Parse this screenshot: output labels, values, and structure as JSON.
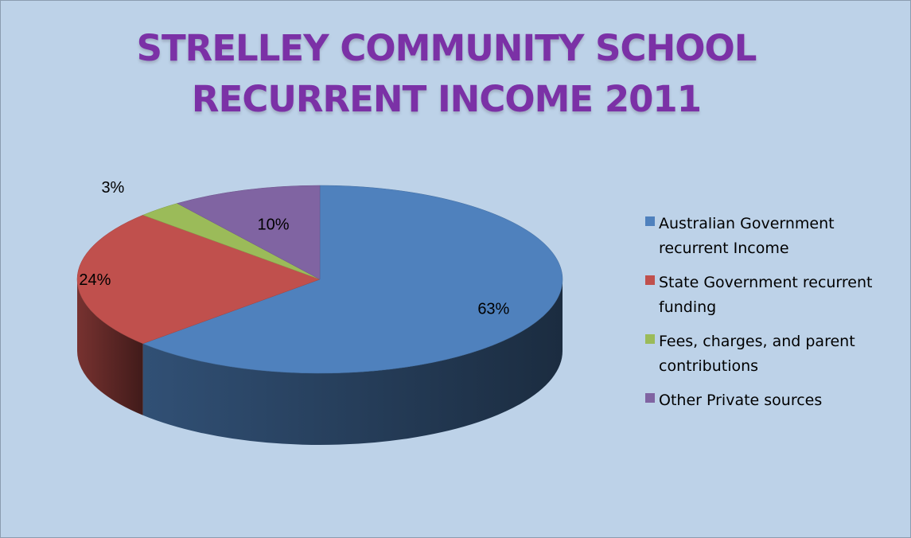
{
  "chart_data": {
    "type": "pie",
    "title": "STRELLEY COMMUNITY SCHOOL RECURRENT INCOME 2011",
    "three_d": true,
    "legend_placement": "right",
    "slices": [
      {
        "label": "Australian Government recurrent Income",
        "value": 63,
        "display": "63%",
        "color": "#4f81bd"
      },
      {
        "label": "State Government recurrent funding",
        "value": 24,
        "display": "24%",
        "color": "#c0504d"
      },
      {
        "label": "Fees, charges, and parent contributions",
        "value": 3,
        "display": "3%",
        "color": "#9bbb59"
      },
      {
        "label": "Other Private sources",
        "value": 10,
        "display": "10%",
        "color": "#8064a2"
      }
    ]
  },
  "colors": {
    "background": "#bdd2e8",
    "title": "#7b31a6"
  }
}
